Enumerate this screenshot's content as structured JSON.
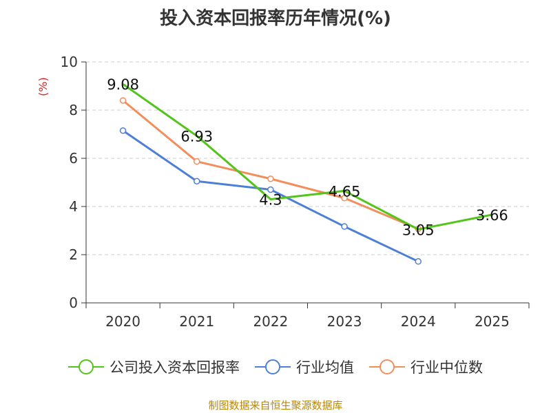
{
  "title": "投入资本回报率历年情况(%)",
  "source": "制图数据来自恒生聚源数据库",
  "chart_data": {
    "type": "line",
    "title": "投入资本回报率历年情况(%)",
    "xlabel": "",
    "ylabel": "(%)",
    "ylim": [
      0,
      10
    ],
    "yticks": [
      "0",
      "2",
      "4",
      "6",
      "8",
      "10"
    ],
    "grid": true,
    "legend_position": "bottom",
    "categories": [
      "2020",
      "2021",
      "2022",
      "2023",
      "2024",
      "2025"
    ],
    "series": [
      {
        "name": "公司投入资本回报率",
        "color": "#52c41a",
        "values": [
          9.08,
          6.93,
          4.3,
          4.65,
          3.05,
          3.66
        ],
        "labels": [
          "9.08",
          "6.93",
          "4.3",
          "4.65",
          "3.05",
          "3.66"
        ]
      },
      {
        "name": "行业均值",
        "color": "#4e7fd8",
        "values": [
          7.15,
          5.05,
          4.7,
          3.17,
          1.72,
          null
        ]
      },
      {
        "name": "行业中位数",
        "color": "#f28e5c",
        "values": [
          8.4,
          5.87,
          5.15,
          4.35,
          3.07,
          null
        ]
      }
    ]
  }
}
